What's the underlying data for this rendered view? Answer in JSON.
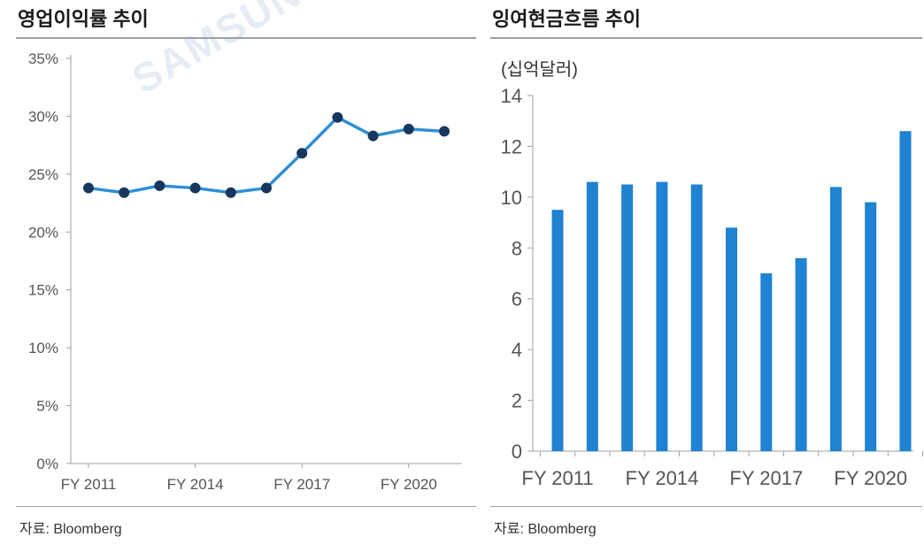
{
  "watermark": "SAMSUNG SE",
  "left": {
    "title": "영업이익률 추이",
    "source": "자료: Bloomberg",
    "chart_data": {
      "type": "line",
      "title": "영업이익률 추이",
      "xlabel": "",
      "ylabel": "",
      "ylim": [
        0,
        35
      ],
      "y_ticks": [
        "0%",
        "5%",
        "10%",
        "15%",
        "20%",
        "25%",
        "30%",
        "35%"
      ],
      "x_tick_labels": [
        "FY 2011",
        "FY 2014",
        "FY 2017",
        "FY 2020"
      ],
      "x": [
        2011,
        2012,
        2013,
        2014,
        2015,
        2016,
        2017,
        2018,
        2019,
        2020,
        2021
      ],
      "series": [
        {
          "values": [
            23.8,
            23.4,
            24.0,
            23.8,
            23.4,
            23.8,
            26.8,
            29.9,
            28.3,
            28.9,
            28.7
          ]
        }
      ],
      "line_color": "#2e8fd4",
      "marker_color": "#17375e",
      "grid": false
    }
  },
  "right": {
    "title": "잉여현금흐름 추이",
    "unit": "(십억달러)",
    "source": "자료: Bloomberg",
    "chart_data": {
      "type": "bar",
      "title": "잉여현금흐름 추이",
      "xlabel": "",
      "ylabel": "(십억달러)",
      "ylim": [
        0,
        14
      ],
      "y_ticks": [
        "0",
        "2",
        "4",
        "6",
        "8",
        "10",
        "12",
        "14"
      ],
      "x_tick_labels": [
        "FY 2011",
        "FY 2014",
        "FY 2017",
        "FY 2020"
      ],
      "categories": [
        "FY 2011",
        "FY 2012",
        "FY 2013",
        "FY 2014",
        "FY 2015",
        "FY 2016",
        "FY 2017",
        "FY 2018",
        "FY 2019",
        "FY 2020",
        "FY 2021"
      ],
      "values": [
        9.5,
        10.6,
        10.5,
        10.6,
        10.5,
        8.8,
        7.0,
        7.6,
        10.4,
        9.8,
        12.6
      ],
      "bar_color": "#1f82d2",
      "grid": false
    }
  }
}
